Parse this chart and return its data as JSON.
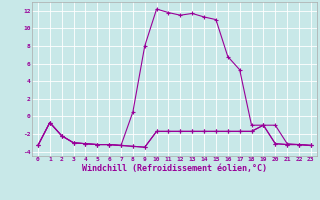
{
  "title": "",
  "xlabel": "Windchill (Refroidissement éolien,°C)",
  "ylabel": "",
  "bg_color": "#c8e8e8",
  "line_color": "#990099",
  "grid_color": "#ffffff",
  "xlim": [
    -0.5,
    23.5
  ],
  "ylim": [
    -4.5,
    13.0
  ],
  "xticks": [
    0,
    1,
    2,
    3,
    4,
    5,
    6,
    7,
    8,
    9,
    10,
    11,
    12,
    13,
    14,
    15,
    16,
    17,
    18,
    19,
    20,
    21,
    22,
    23
  ],
  "yticks": [
    -4,
    -2,
    0,
    2,
    4,
    6,
    8,
    10,
    12
  ],
  "line1_x": [
    0,
    1,
    2,
    3,
    4,
    5,
    6,
    7,
    8,
    9,
    10,
    11,
    12,
    13,
    14,
    15,
    16,
    17,
    18,
    19,
    20,
    21,
    22,
    23
  ],
  "line1_y": [
    -3.3,
    -0.7,
    -2.2,
    -3.0,
    -3.1,
    -3.2,
    -3.2,
    -3.3,
    -3.4,
    -3.5,
    -1.7,
    -1.7,
    -1.7,
    -1.7,
    -1.7,
    -1.7,
    -1.7,
    -1.7,
    -1.7,
    -1.0,
    -3.1,
    -3.2,
    -3.2,
    -3.3
  ],
  "line2_x": [
    0,
    1,
    2,
    3,
    4,
    5,
    6,
    7,
    8,
    9,
    10,
    11,
    12,
    13,
    14,
    15,
    16,
    17,
    18,
    19,
    20,
    21,
    22,
    23
  ],
  "line2_y": [
    -3.3,
    -0.7,
    -2.2,
    -3.0,
    -3.1,
    -3.2,
    -3.2,
    -3.3,
    0.5,
    8.0,
    12.2,
    11.8,
    11.5,
    11.7,
    11.3,
    11.0,
    6.8,
    5.3,
    -1.0,
    -1.0,
    -1.0,
    -3.1,
    -3.2,
    -3.3
  ],
  "line3_x": [
    0,
    1,
    2,
    3,
    4,
    5,
    6,
    7,
    8,
    9,
    10,
    11,
    12,
    13,
    14,
    15,
    16,
    17,
    18,
    19,
    20,
    21,
    22,
    23
  ],
  "line3_y": [
    -3.3,
    -0.7,
    -2.2,
    -3.0,
    -3.1,
    -3.2,
    -3.2,
    -3.3,
    -3.4,
    -3.5,
    -1.7,
    -1.7,
    -1.7,
    -1.7,
    -1.7,
    -1.7,
    -1.7,
    -1.7,
    -1.7,
    -1.0,
    -3.1,
    -3.2,
    -3.2,
    -3.3
  ],
  "marker": "+",
  "markersize": 3,
  "linewidth": 0.8,
  "tick_fontsize": 4.5,
  "xlabel_fontsize": 6.0
}
